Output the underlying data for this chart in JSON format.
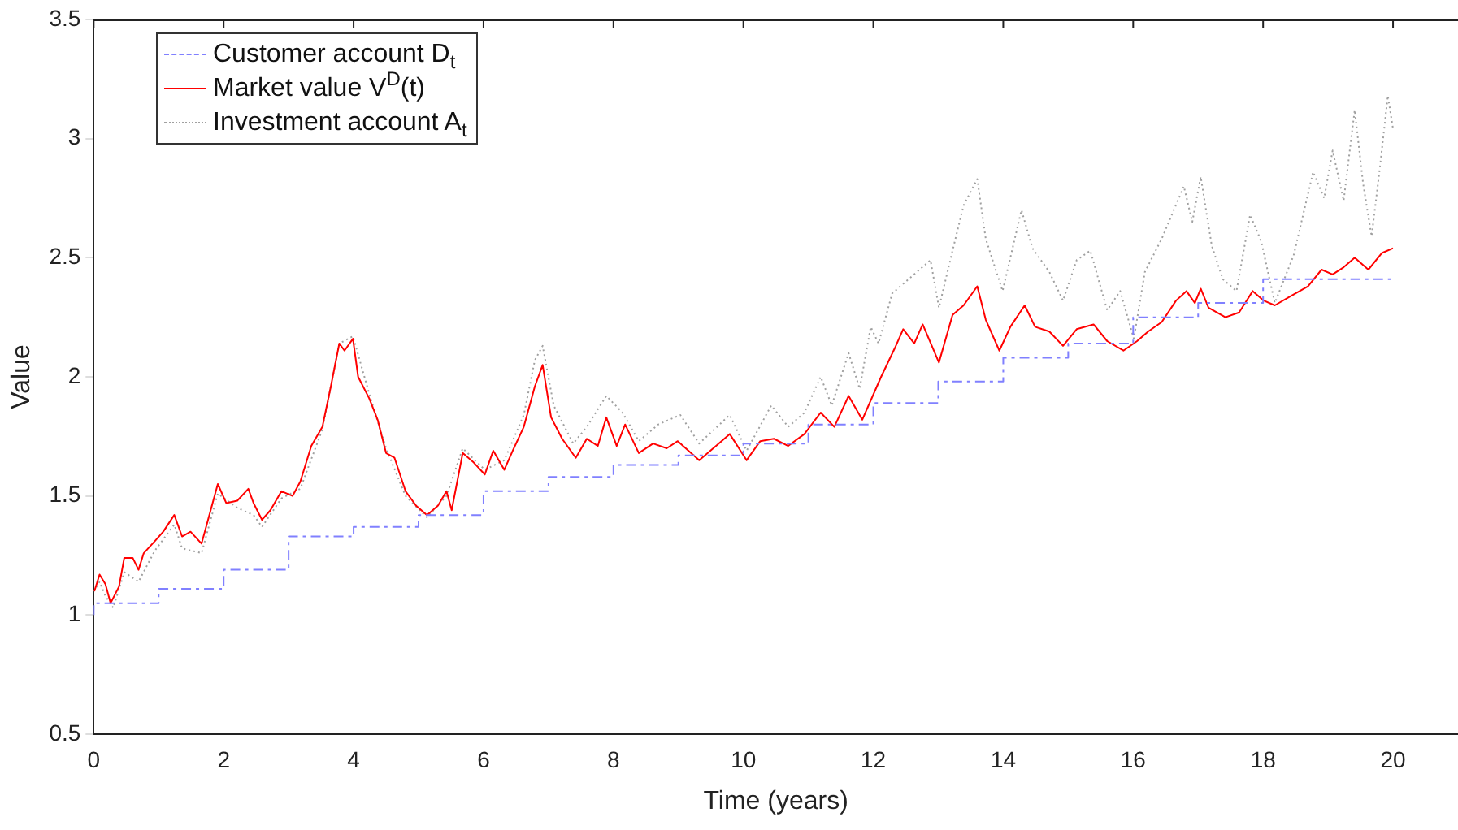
{
  "chart_data": {
    "type": "line",
    "xlabel": "Time (years)",
    "ylabel": "Value",
    "xlim": [
      0,
      21
    ],
    "xticks": [
      0,
      2,
      4,
      6,
      8,
      10,
      12,
      14,
      16,
      18,
      20
    ],
    "ylim": [
      0.5,
      3.5
    ],
    "yticks": [
      0.5,
      1,
      1.5,
      2,
      2.5,
      3,
      3.5
    ],
    "legend": "top left",
    "grid": false,
    "series": [
      {
        "name": "Customer account D$_{t}$",
        "type": "step",
        "color": "#8080ff",
        "line_style": "dashed",
        "x": [
          0,
          1,
          2,
          3,
          4,
          5,
          6,
          7,
          8,
          9,
          10,
          11,
          12,
          13,
          14,
          15,
          16,
          17,
          18,
          19,
          20
        ],
        "values": [
          1.0,
          1.05,
          1.11,
          1.19,
          1.33,
          1.37,
          1.42,
          1.52,
          1.58,
          1.63,
          1.67,
          1.72,
          1.8,
          1.89,
          1.98,
          2.08,
          2.14,
          2.25,
          2.31,
          2.41,
          2.41
        ]
      },
      {
        "name": "Market value V$^{D}$(t)",
        "type": "line",
        "color": "#ff0000",
        "line_style": "solid",
        "x": [
          0.01,
          0.09,
          0.18,
          0.26,
          0.39,
          0.47,
          0.6,
          0.69,
          0.77,
          0.94,
          1.07,
          1.24,
          1.36,
          1.49,
          1.66,
          1.83,
          1.91,
          2.04,
          2.21,
          2.38,
          2.46,
          2.59,
          2.72,
          2.89,
          3.06,
          3.18,
          3.35,
          3.52,
          3.65,
          3.78,
          3.86,
          3.99,
          4.07,
          4.24,
          4.37,
          4.5,
          4.63,
          4.8,
          4.96,
          5.13,
          5.3,
          5.43,
          5.51,
          5.68,
          5.85,
          6.02,
          6.15,
          6.32,
          6.45,
          6.62,
          6.79,
          6.91,
          7.04,
          7.21,
          7.42,
          7.59,
          7.76,
          7.89,
          8.05,
          8.18,
          8.39,
          8.61,
          8.82,
          8.99,
          9.32,
          9.58,
          9.79,
          10.05,
          10.26,
          10.47,
          10.69,
          10.94,
          11.19,
          11.4,
          11.62,
          11.83,
          12.12,
          12.33,
          12.46,
          12.63,
          12.76,
          13.01,
          13.22,
          13.39,
          13.6,
          13.73,
          13.94,
          14.11,
          14.33,
          14.49,
          14.71,
          14.92,
          15.13,
          15.39,
          15.6,
          15.85,
          16.06,
          16.23,
          16.44,
          16.66,
          16.82,
          16.95,
          17.04,
          17.16,
          17.42,
          17.63,
          17.84,
          18.01,
          18.18,
          18.43,
          18.69,
          18.9,
          19.07,
          19.24,
          19.41,
          19.62,
          19.83,
          20.0
        ],
        "values": [
          1.1,
          1.17,
          1.13,
          1.05,
          1.12,
          1.24,
          1.24,
          1.19,
          1.26,
          1.31,
          1.35,
          1.42,
          1.33,
          1.35,
          1.3,
          1.47,
          1.55,
          1.47,
          1.48,
          1.53,
          1.47,
          1.4,
          1.44,
          1.52,
          1.5,
          1.56,
          1.71,
          1.79,
          1.96,
          2.14,
          2.11,
          2.16,
          2.0,
          1.91,
          1.82,
          1.68,
          1.66,
          1.52,
          1.46,
          1.42,
          1.46,
          1.52,
          1.44,
          1.68,
          1.64,
          1.59,
          1.69,
          1.61,
          1.69,
          1.79,
          1.96,
          2.05,
          1.83,
          1.74,
          1.66,
          1.74,
          1.71,
          1.83,
          1.71,
          1.8,
          1.68,
          1.72,
          1.7,
          1.73,
          1.65,
          1.71,
          1.76,
          1.65,
          1.73,
          1.74,
          1.71,
          1.76,
          1.85,
          1.79,
          1.92,
          1.82,
          2.0,
          2.12,
          2.2,
          2.14,
          2.22,
          2.06,
          2.26,
          2.3,
          2.38,
          2.24,
          2.11,
          2.21,
          2.3,
          2.21,
          2.19,
          2.13,
          2.2,
          2.22,
          2.15,
          2.11,
          2.15,
          2.19,
          2.23,
          2.32,
          2.36,
          2.31,
          2.37,
          2.29,
          2.25,
          2.27,
          2.36,
          2.32,
          2.3,
          2.34,
          2.38,
          2.45,
          2.43,
          2.46,
          2.5,
          2.45,
          2.52,
          2.54
        ]
      },
      {
        "name": "Investment account A$_{t}$",
        "type": "line",
        "color": "#a0a0a0",
        "line_style": "dotted",
        "x": [
          0,
          0.09,
          0.18,
          0.3,
          0.47,
          0.69,
          0.94,
          1.24,
          1.36,
          1.66,
          1.91,
          2.21,
          2.46,
          2.59,
          2.89,
          3.18,
          3.52,
          3.78,
          3.99,
          4.24,
          4.5,
          4.8,
          5.13,
          5.43,
          5.68,
          6.02,
          6.32,
          6.62,
          6.79,
          6.91,
          7.08,
          7.38,
          7.59,
          7.89,
          8.14,
          8.39,
          8.69,
          9.03,
          9.32,
          9.79,
          10.05,
          10.43,
          10.69,
          10.94,
          11.19,
          11.36,
          11.62,
          11.79,
          11.96,
          12.08,
          12.29,
          12.88,
          13.01,
          13.22,
          13.39,
          13.6,
          13.73,
          13.99,
          14.28,
          14.45,
          14.71,
          14.92,
          15.13,
          15.34,
          15.6,
          15.8,
          16.01,
          16.18,
          16.44,
          16.78,
          16.91,
          17.04,
          17.21,
          17.38,
          17.59,
          17.8,
          17.97,
          18.18,
          18.47,
          18.77,
          18.94,
          19.07,
          19.24,
          19.41,
          19.54,
          19.67,
          19.79,
          19.92,
          20.0
        ],
        "values": [
          1.1,
          1.14,
          1.08,
          1.03,
          1.18,
          1.14,
          1.27,
          1.38,
          1.28,
          1.26,
          1.51,
          1.45,
          1.42,
          1.37,
          1.49,
          1.53,
          1.78,
          2.14,
          2.17,
          1.93,
          1.7,
          1.5,
          1.41,
          1.5,
          1.7,
          1.61,
          1.65,
          1.84,
          2.07,
          2.13,
          1.88,
          1.72,
          1.79,
          1.92,
          1.85,
          1.73,
          1.8,
          1.84,
          1.72,
          1.84,
          1.69,
          1.88,
          1.79,
          1.85,
          2.0,
          1.88,
          2.1,
          1.95,
          2.21,
          2.14,
          2.35,
          2.49,
          2.29,
          2.53,
          2.72,
          2.83,
          2.58,
          2.36,
          2.7,
          2.54,
          2.44,
          2.32,
          2.49,
          2.53,
          2.28,
          2.36,
          2.16,
          2.44,
          2.58,
          2.8,
          2.65,
          2.84,
          2.55,
          2.41,
          2.36,
          2.68,
          2.57,
          2.31,
          2.51,
          2.86,
          2.75,
          2.95,
          2.74,
          3.12,
          2.81,
          2.59,
          2.86,
          3.18,
          3.04
        ]
      }
    ]
  }
}
